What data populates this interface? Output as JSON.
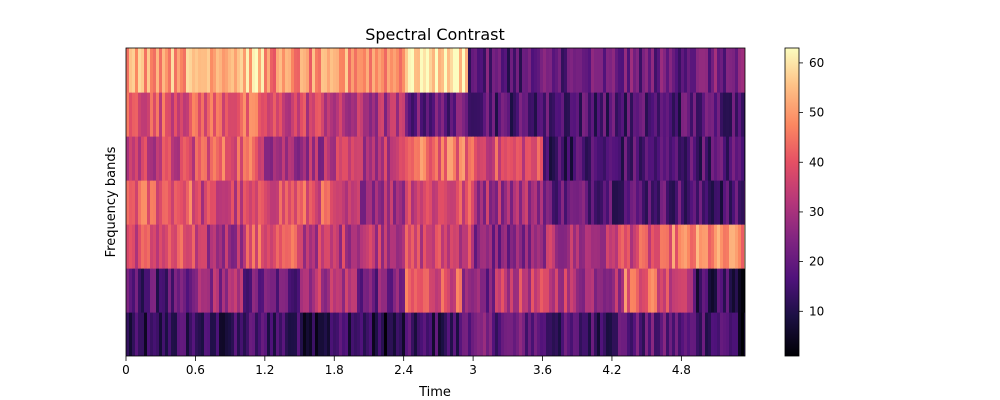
{
  "chart_data": {
    "type": "heatmap",
    "title": "Spectral Contrast",
    "xlabel": "Time",
    "ylabel": "Frequency bands",
    "x_ticks": [
      0,
      0.6,
      1.2,
      1.8,
      2.4,
      3,
      3.6,
      4.2,
      4.8
    ],
    "x_tick_labels": [
      "0",
      "0.6",
      "1.2",
      "1.8",
      "2.4",
      "3",
      "3.6",
      "4.2",
      "4.8"
    ],
    "xlim": [
      0,
      5.35
    ],
    "n_bands": 7,
    "grid": false,
    "colormap": "magma",
    "colorbar": {
      "ticks": [
        10,
        20,
        30,
        40,
        50,
        60
      ],
      "tick_labels": [
        "10",
        "20",
        "30",
        "40",
        "50",
        "60"
      ],
      "vmin": 1,
      "vmax": 63
    },
    "bands": [
      {
        "band": 1,
        "segments": [
          {
            "end": 0.35,
            "value": 10
          },
          {
            "end": 0.65,
            "value": 14
          },
          {
            "end": 1.0,
            "value": 11
          },
          {
            "end": 1.4,
            "value": 15
          },
          {
            "end": 1.8,
            "value": 11
          },
          {
            "end": 2.1,
            "value": 14
          },
          {
            "end": 2.4,
            "value": 9
          },
          {
            "end": 2.9,
            "value": 13
          },
          {
            "end": 3.0,
            "value": 24
          },
          {
            "end": 3.6,
            "value": 20
          },
          {
            "end": 4.2,
            "value": 15
          },
          {
            "end": 4.8,
            "value": 18
          },
          {
            "end": 5.3,
            "value": 17
          },
          {
            "end": 5.35,
            "value": 3
          }
        ]
      },
      {
        "band": 2,
        "segments": [
          {
            "end": 0.6,
            "value": 17
          },
          {
            "end": 1.0,
            "value": 28
          },
          {
            "end": 1.5,
            "value": 20
          },
          {
            "end": 2.0,
            "value": 32
          },
          {
            "end": 2.4,
            "value": 22
          },
          {
            "end": 2.9,
            "value": 40
          },
          {
            "end": 3.2,
            "value": 22
          },
          {
            "end": 3.8,
            "value": 34
          },
          {
            "end": 4.3,
            "value": 30
          },
          {
            "end": 4.6,
            "value": 44
          },
          {
            "end": 4.9,
            "value": 38
          },
          {
            "end": 5.3,
            "value": 13
          },
          {
            "end": 5.35,
            "value": 2
          }
        ]
      },
      {
        "band": 3,
        "segments": [
          {
            "end": 0.6,
            "value": 38
          },
          {
            "end": 1.0,
            "value": 30
          },
          {
            "end": 1.5,
            "value": 40
          },
          {
            "end": 2.0,
            "value": 33
          },
          {
            "end": 2.4,
            "value": 34
          },
          {
            "end": 3.0,
            "value": 36
          },
          {
            "end": 3.6,
            "value": 24
          },
          {
            "end": 4.2,
            "value": 30
          },
          {
            "end": 4.7,
            "value": 38
          },
          {
            "end": 4.9,
            "value": 45
          },
          {
            "end": 5.35,
            "value": 47
          }
        ]
      },
      {
        "band": 4,
        "segments": [
          {
            "end": 0.6,
            "value": 42
          },
          {
            "end": 1.2,
            "value": 35
          },
          {
            "end": 1.8,
            "value": 40
          },
          {
            "end": 2.4,
            "value": 30
          },
          {
            "end": 3.0,
            "value": 38
          },
          {
            "end": 3.6,
            "value": 30
          },
          {
            "end": 4.2,
            "value": 20
          },
          {
            "end": 4.8,
            "value": 18
          },
          {
            "end": 5.35,
            "value": 15
          }
        ]
      },
      {
        "band": 5,
        "segments": [
          {
            "end": 0.6,
            "value": 35
          },
          {
            "end": 1.2,
            "value": 42
          },
          {
            "end": 1.8,
            "value": 30
          },
          {
            "end": 2.4,
            "value": 32
          },
          {
            "end": 3.0,
            "value": 44
          },
          {
            "end": 3.6,
            "value": 38
          },
          {
            "end": 4.2,
            "value": 15
          },
          {
            "end": 4.8,
            "value": 16
          },
          {
            "end": 5.35,
            "value": 17
          }
        ]
      },
      {
        "band": 6,
        "segments": [
          {
            "end": 0.6,
            "value": 40
          },
          {
            "end": 1.2,
            "value": 42
          },
          {
            "end": 1.8,
            "value": 36
          },
          {
            "end": 2.4,
            "value": 30
          },
          {
            "end": 3.2,
            "value": 20
          },
          {
            "end": 3.6,
            "value": 17
          },
          {
            "end": 4.2,
            "value": 17
          },
          {
            "end": 4.8,
            "value": 16
          },
          {
            "end": 5.35,
            "value": 18
          }
        ]
      },
      {
        "band": 7,
        "segments": [
          {
            "end": 0.6,
            "value": 52
          },
          {
            "end": 1.2,
            "value": 56
          },
          {
            "end": 1.8,
            "value": 48
          },
          {
            "end": 2.4,
            "value": 50
          },
          {
            "end": 2.95,
            "value": 60
          },
          {
            "end": 3.6,
            "value": 18
          },
          {
            "end": 4.2,
            "value": 20
          },
          {
            "end": 4.8,
            "value": 21
          },
          {
            "end": 5.35,
            "value": 22
          }
        ]
      }
    ]
  }
}
